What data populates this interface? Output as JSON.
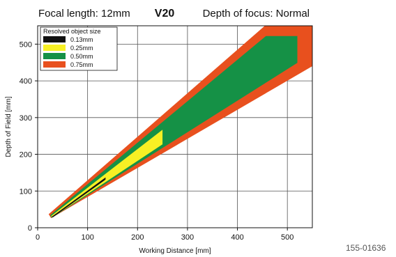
{
  "chart_data": {
    "type": "area",
    "title_left": "Focal length: 12mm",
    "title_center": "V20",
    "title_right": "Depth of focus: Normal",
    "xlabel": "Working Distance [mm]",
    "ylabel": "Depth of Field [mm]",
    "xlim": [
      0,
      550
    ],
    "ylim": [
      0,
      550
    ],
    "xticks": [
      0,
      100,
      200,
      300,
      400,
      500
    ],
    "yticks": [
      0,
      100,
      200,
      300,
      400,
      500
    ],
    "grid": true,
    "legend_title": "Resolved object size",
    "legend_position": "top-left",
    "figure_code": "155-01636",
    "series": [
      {
        "name": "0.75mm",
        "color": "#e8501e",
        "polygon": [
          [
            22,
            37
          ],
          [
            455,
            550
          ],
          [
            550,
            550
          ],
          [
            550,
            440
          ],
          [
            27,
            26
          ]
        ]
      },
      {
        "name": "0.50mm",
        "color": "#159146",
        "polygon": [
          [
            25,
            34
          ],
          [
            457,
            522
          ],
          [
            520,
            522
          ],
          [
            520,
            449
          ],
          [
            28,
            27
          ]
        ]
      },
      {
        "name": "0.25mm",
        "color": "#f7f024",
        "polygon": [
          [
            27,
            32
          ],
          [
            250,
            267
          ],
          [
            250,
            227
          ],
          [
            29,
            28
          ]
        ]
      },
      {
        "name": "0.13mm",
        "color": "#111111",
        "polygon": [
          [
            28,
            30
          ],
          [
            136,
            137
          ],
          [
            136,
            131
          ],
          [
            30,
            28
          ]
        ]
      }
    ]
  }
}
